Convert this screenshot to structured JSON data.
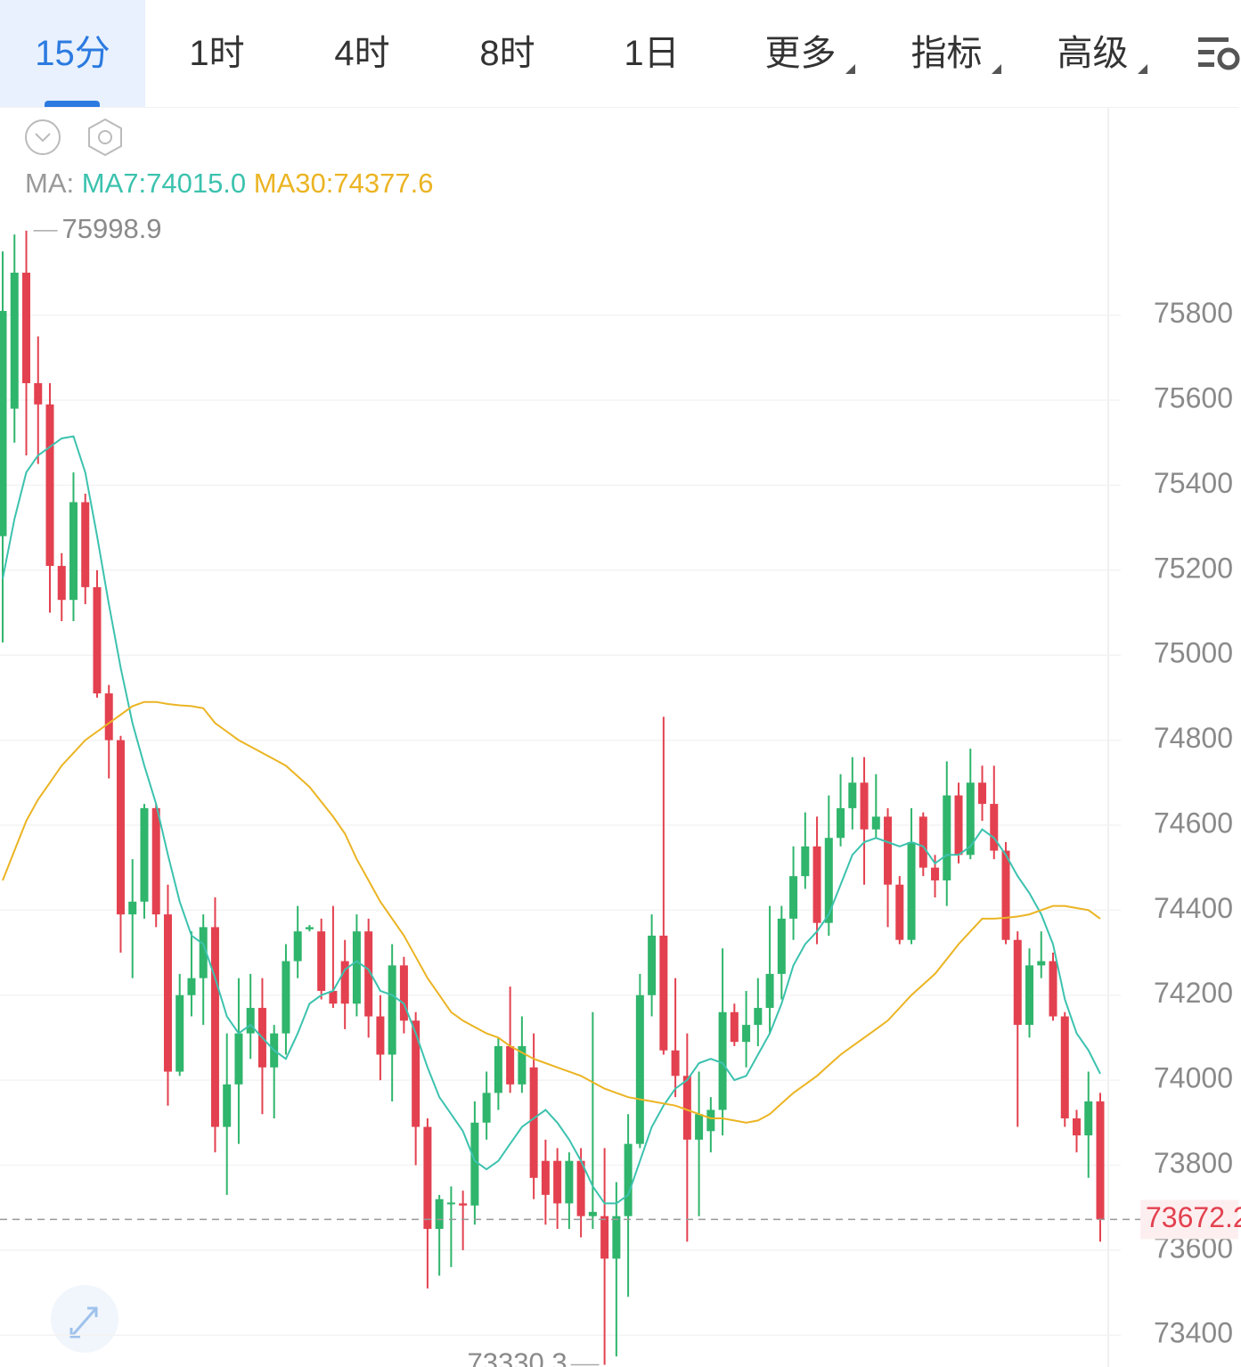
{
  "toolbar": {
    "tabs": [
      "15分",
      "1时",
      "4时",
      "8时",
      "1日",
      "更多",
      "指标",
      "高级"
    ]
  },
  "chart_data": {
    "type": "candlestick",
    "legend_prefix": "MA:",
    "up_color": "#2fb56c",
    "down_color": "#e3414f",
    "ylim": [
      73325,
      76290
    ],
    "yticks": [
      73400,
      73600,
      73800,
      74000,
      74200,
      74400,
      74600,
      74800,
      75000,
      75200,
      75400,
      75600,
      75800
    ],
    "grid": true,
    "high_label": 75998.9,
    "low_label": 73330.3,
    "last_price": 73672.2,
    "open": [
      75280,
      75580,
      75900,
      75640,
      75590,
      75210,
      75130,
      75360,
      75160,
      74910,
      74800,
      74390,
      74420,
      74640,
      74390,
      74020,
      74200,
      74240,
      74360,
      73890,
      73990,
      74110,
      74170,
      74030,
      74110,
      74280,
      74355,
      74350,
      74210,
      74280,
      74180,
      74350,
      74150,
      74060,
      74270,
      74140,
      73890,
      73650,
      73710,
      73710,
      73705,
      73900,
      73970,
      74080,
      73990,
      74030,
      73810,
      73810,
      73710,
      73810,
      73680,
      73680,
      73580,
      73680,
      73850,
      74200,
      74340,
      74070,
      74010,
      73860,
      73880,
      73930,
      74160,
      74090,
      74130,
      74170,
      74250,
      74380,
      74480,
      74550,
      74370,
      74570,
      74640,
      74700,
      74590,
      74620,
      74460,
      74330,
      74620,
      74500,
      74470,
      74670,
      74530,
      74700,
      74650,
      74540,
      74330,
      74130,
      74270,
      74280,
      74150,
      73910,
      73870,
      73950
    ],
    "high": [
      75950,
      75990,
      75998.9,
      75750,
      75640,
      75240,
      75430,
      75380,
      75200,
      74930,
      74810,
      74520,
      74650,
      74650,
      74460,
      74250,
      74350,
      74390,
      74430,
      74110,
      74240,
      74250,
      74240,
      74130,
      74320,
      74410,
      74365,
      74380,
      74410,
      74330,
      74390,
      74380,
      74200,
      74320,
      74290,
      74160,
      73910,
      73730,
      73750,
      73740,
      73950,
      74020,
      74100,
      74220,
      74150,
      74110,
      73860,
      73840,
      73830,
      73840,
      74160,
      73840,
      73760,
      73920,
      74250,
      74390,
      74855,
      74240,
      74110,
      74020,
      73960,
      74310,
      74180,
      74210,
      74240,
      74410,
      74410,
      74550,
      74630,
      74620,
      74670,
      74720,
      74760,
      74760,
      74720,
      74640,
      74480,
      74640,
      74630,
      74530,
      74750,
      74700,
      74780,
      74740,
      74740,
      74560,
      74350,
      74310,
      74350,
      74300,
      74160,
      73930,
      74020,
      73970
    ],
    "low": [
      75030,
      75500,
      75470,
      75450,
      75100,
      75080,
      75080,
      75120,
      74900,
      74710,
      74300,
      74240,
      74380,
      74360,
      73940,
      74010,
      74150,
      74130,
      73830,
      73730,
      73850,
      74050,
      73920,
      73910,
      74060,
      74240,
      74350,
      74190,
      74170,
      74120,
      74150,
      74100,
      74000,
      73950,
      74110,
      73800,
      73510,
      73540,
      73560,
      73600,
      73660,
      73860,
      73930,
      73970,
      73970,
      73720,
      73660,
      73650,
      73650,
      73630,
      73650,
      73330.3,
      73350,
      73490,
      73840,
      74150,
      74060,
      73960,
      73620,
      73680,
      73830,
      73870,
      74080,
      74030,
      74080,
      74110,
      74190,
      74330,
      74450,
      74320,
      74340,
      74550,
      74590,
      74460,
      74570,
      74360,
      74320,
      74320,
      74480,
      74430,
      74410,
      74510,
      74520,
      74610,
      74520,
      74320,
      73890,
      74100,
      74240,
      74140,
      73890,
      73830,
      73770,
      73620
    ],
    "close": [
      75810,
      75900,
      75640,
      75590,
      75210,
      75130,
      75360,
      75160,
      74910,
      74800,
      74390,
      74420,
      74640,
      74390,
      74020,
      74200,
      74240,
      74360,
      73890,
      73990,
      74110,
      74170,
      74030,
      74110,
      74280,
      74350,
      74360,
      74210,
      74180,
      74180,
      74350,
      74150,
      74060,
      74270,
      74140,
      73890,
      73650,
      73720,
      73712,
      73705,
      73900,
      73970,
      74080,
      73990,
      74080,
      73770,
      73730,
      73710,
      73810,
      73680,
      73690,
      73580,
      73680,
      73850,
      74200,
      74340,
      74070,
      74010,
      73860,
      73920,
      73930,
      74160,
      74090,
      74130,
      74170,
      74250,
      74380,
      74480,
      74550,
      74370,
      74570,
      74640,
      74700,
      74590,
      74620,
      74460,
      74330,
      74560,
      74500,
      74470,
      74670,
      74530,
      74700,
      74650,
      74540,
      74330,
      74130,
      74270,
      74280,
      74150,
      73910,
      73870,
      73950,
      73672.2
    ],
    "series": [
      {
        "label": "MA7:74015.0",
        "color": "#3cc2ae",
        "values": [
          75180,
          75320,
          75430,
          75470,
          75490,
          75510,
          75515,
          75430,
          75280,
          75120,
          74970,
          74840,
          74740,
          74650,
          74530,
          74420,
          74340,
          74320,
          74240,
          74150,
          74110,
          74130,
          74100,
          74070,
          74050,
          74110,
          74180,
          74200,
          74210,
          74260,
          74280,
          74260,
          74210,
          74200,
          74180,
          74110,
          74030,
          73960,
          73920,
          73880,
          73810,
          73790,
          73810,
          73850,
          73890,
          73910,
          73930,
          73900,
          73860,
          73810,
          73750,
          73710,
          73710,
          73730,
          73810,
          73890,
          73940,
          73980,
          74000,
          74040,
          74050,
          74040,
          74000,
          74010,
          74060,
          74110,
          74180,
          74270,
          74320,
          74350,
          74390,
          74460,
          74530,
          74560,
          74570,
          74560,
          74550,
          74560,
          74550,
          74510,
          74530,
          74530,
          74550,
          74590,
          74570,
          74530,
          74480,
          74440,
          74390,
          74320,
          74190,
          74110,
          74070,
          74015
        ]
      },
      {
        "label": "MA30:74377.6",
        "color": "#ebb423",
        "values": [
          74470,
          74540,
          74610,
          74660,
          74700,
          74740,
          74770,
          74800,
          74820,
          74840,
          74860,
          74880,
          74890,
          74890,
          74885,
          74882,
          74880,
          74875,
          74840,
          74820,
          74800,
          74785,
          74770,
          74755,
          74740,
          74715,
          74690,
          74655,
          74620,
          74580,
          74520,
          74470,
          74420,
          74380,
          74340,
          74290,
          74240,
          74200,
          74160,
          74140,
          74125,
          74110,
          74100,
          74080,
          74065,
          74050,
          74040,
          74030,
          74020,
          74010,
          73995,
          73980,
          73970,
          73960,
          73955,
          73950,
          73945,
          73940,
          73930,
          73920,
          73910,
          73910,
          73905,
          73900,
          73905,
          73920,
          73945,
          73970,
          73990,
          74010,
          74035,
          74060,
          74080,
          74100,
          74120,
          74140,
          74170,
          74200,
          74225,
          74250,
          74285,
          74320,
          74350,
          74380,
          74380,
          74382,
          74385,
          74390,
          74400,
          74410,
          74410,
          74405,
          74400,
          74380
        ]
      }
    ]
  }
}
